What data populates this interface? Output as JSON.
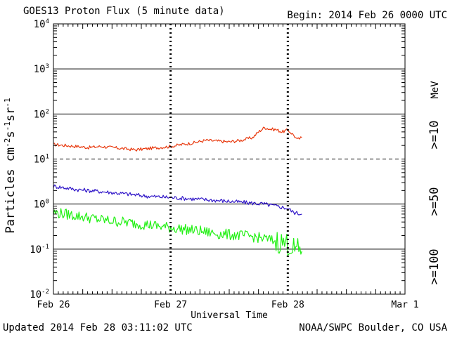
{
  "header": {
    "title": "GOES13 Proton Flux (5 minute data)",
    "begin": "Begin: 2014 Feb 26 0000 UTC"
  },
  "footer": {
    "updated": "Updated 2014 Feb 28 03:11:02 UTC",
    "source": "NOAA/SWPC Boulder, CO USA"
  },
  "chart_data": {
    "type": "line",
    "title": "GOES13 Proton Flux (5 minute data)",
    "xlabel": "Universal Time",
    "ylabel": "Particles cm-2s-1sr-1",
    "yscale": "log",
    "ylim_exp": [
      -2,
      4
    ],
    "y_ticks": [
      {
        "base": "10",
        "exp": "4",
        "value": 10000
      },
      {
        "base": "10",
        "exp": "3",
        "value": 1000
      },
      {
        "base": "10",
        "exp": "2",
        "value": 100
      },
      {
        "base": "10",
        "exp": "1",
        "value": 10
      },
      {
        "base": "10",
        "exp": "0",
        "value": 1
      },
      {
        "base": "10",
        "exp": "-1",
        "value": 0.1
      },
      {
        "base": "10",
        "exp": "-2",
        "value": 0.01
      }
    ],
    "x_ticks": [
      "Feb 26",
      "Feb 27",
      "Feb 28",
      "Mar 1"
    ],
    "xlim_days": [
      0,
      3
    ],
    "x_unit": "days since 2014 Feb 26 0000 UTC",
    "threshold": 10,
    "energy_unit": "MeV",
    "series": [
      {
        "name": ">=10",
        "color": "#e8380d",
        "x": [
          0,
          0.1,
          0.2,
          0.3,
          0.4,
          0.5,
          0.6,
          0.7,
          0.8,
          0.9,
          1.0,
          1.1,
          1.2,
          1.3,
          1.4,
          1.5,
          1.6,
          1.7,
          1.75,
          1.8,
          1.85,
          1.9,
          1.95,
          2.0,
          2.05,
          2.08,
          2.12
        ],
        "values": [
          21,
          20,
          19,
          18,
          19,
          18,
          17,
          16,
          17,
          18,
          19,
          21,
          23,
          26,
          25,
          24,
          26,
          30,
          40,
          50,
          46,
          45,
          40,
          44,
          34,
          27,
          30
        ]
      },
      {
        "name": ">=50",
        "color": "#3016c8",
        "x": [
          0,
          0.1,
          0.2,
          0.3,
          0.4,
          0.5,
          0.6,
          0.7,
          0.8,
          0.9,
          1.0,
          1.1,
          1.2,
          1.3,
          1.4,
          1.5,
          1.6,
          1.7,
          1.8,
          1.9,
          2.0,
          2.05,
          2.12
        ],
        "values": [
          2.5,
          2.3,
          2.1,
          2.0,
          1.9,
          1.8,
          1.7,
          1.6,
          1.5,
          1.45,
          1.4,
          1.35,
          1.3,
          1.25,
          1.2,
          1.15,
          1.1,
          1.05,
          1.0,
          0.9,
          0.8,
          0.65,
          0.6
        ]
      },
      {
        "name": ">=100",
        "color": "#22f014",
        "x": [
          0,
          0.1,
          0.2,
          0.3,
          0.4,
          0.5,
          0.6,
          0.7,
          0.8,
          0.9,
          1.0,
          1.1,
          1.2,
          1.3,
          1.4,
          1.5,
          1.6,
          1.7,
          1.8,
          1.9,
          2.0,
          2.05,
          2.12
        ],
        "values": [
          0.65,
          0.6,
          0.55,
          0.5,
          0.45,
          0.42,
          0.4,
          0.37,
          0.35,
          0.32,
          0.3,
          0.28,
          0.26,
          0.24,
          0.22,
          0.21,
          0.2,
          0.19,
          0.17,
          0.15,
          0.13,
          0.1,
          0.09
        ]
      }
    ]
  }
}
